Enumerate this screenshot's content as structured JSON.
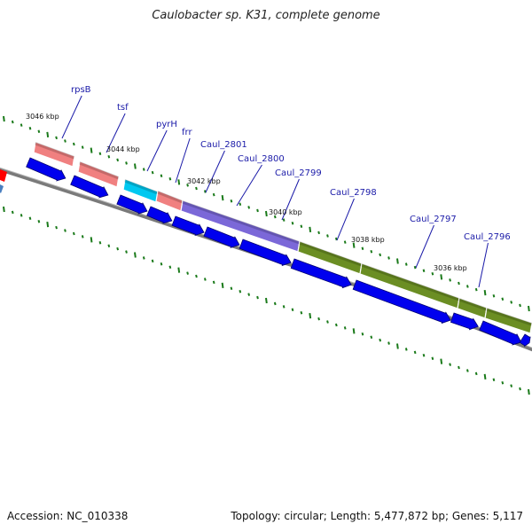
{
  "title": "Caulobacter sp. K31, complete genome",
  "footer": {
    "accession": "Accession: NC_010338",
    "summary": "Topology: circular; Length: 5,477,872 bp; Genes: 5,117"
  },
  "colors": {
    "cds": "#0000ee",
    "cds_shadow": "#000070",
    "backbone": "#808080",
    "tick": "#1a7a1a",
    "label": "#1a1aa8",
    "category_pink": "#f08080",
    "category_cyan": "#00c8f0",
    "category_purple": "#7b68d8",
    "category_olive": "#6b8e23",
    "category_red": "#ff0000"
  },
  "kbp_labels": [
    "3046 kbp",
    "3044 kbp",
    "3042 kbp",
    "3040 kbp",
    "3038 kbp",
    "3036 kbp"
  ],
  "gene_labels": [
    "rpsB",
    "tsf",
    "pyrH",
    "frr",
    "Caul_2801",
    "Caul_2800",
    "Caul_2799",
    "Caul_2798",
    "Caul_2797",
    "Caul_2796"
  ],
  "category_bars": [
    {
      "color": "category_pink"
    },
    {
      "color": "category_pink"
    },
    {
      "color": "category_cyan"
    },
    {
      "color": "category_pink"
    },
    {
      "color": "category_purple"
    },
    {
      "color": "category_olive"
    },
    {
      "color": "category_olive"
    },
    {
      "color": "category_olive"
    },
    {
      "color": "category_olive"
    }
  ]
}
